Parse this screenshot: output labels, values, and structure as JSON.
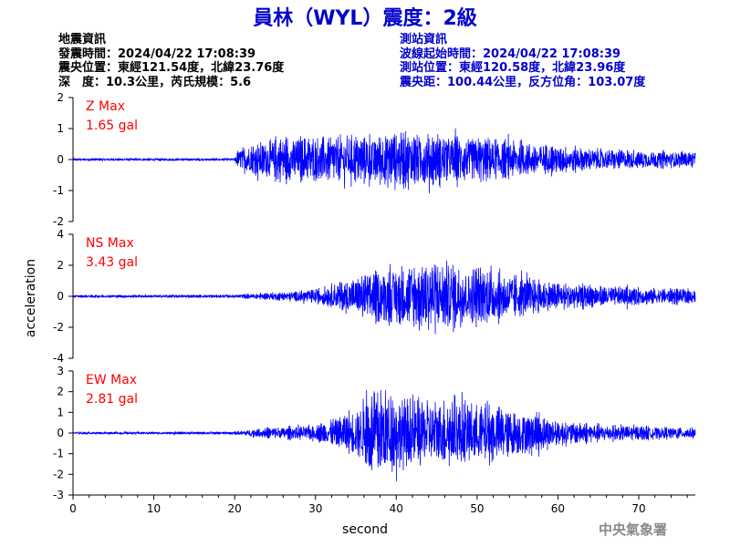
{
  "header": {
    "title": "員林（WYL）震度：2級"
  },
  "quake_info": {
    "heading": "地震資訊",
    "time": "發震時間：2024/04/22 17:08:39",
    "epicenter": "震央位置：東經121.54度，北緯23.76度",
    "depth_mag": "深　度：10.3公里，芮氏規模：5.6"
  },
  "station_info": {
    "heading": "測站資訊",
    "onset": "波線起始時間：2024/04/22 17:08:39",
    "location": "測站位置：東經120.58度，北緯23.96度",
    "distance": "震央距：100.44公里，反方位角：103.07度"
  },
  "agency": "中央氣象署",
  "colors": {
    "trace": "#0000ff",
    "max_label": "#ff0000",
    "title": "#0000cc"
  },
  "chart_data": [
    {
      "type": "line",
      "component": "Z",
      "max_label": "Z Max",
      "max_value": "1.65 gal",
      "ylim": [
        -2,
        2
      ],
      "yticks": [
        -2,
        -1,
        0,
        1,
        2
      ],
      "xlim": [
        0,
        77
      ],
      "onset_s": 20,
      "peak_s": 40,
      "envelope": {
        "t": [
          0,
          20,
          20.5,
          25,
          35,
          40,
          45,
          50,
          55,
          60,
          65,
          70,
          77
        ],
        "amp": [
          0.05,
          0.05,
          0.4,
          0.8,
          0.85,
          1.0,
          0.95,
          0.8,
          0.65,
          0.5,
          0.4,
          0.33,
          0.28
        ]
      }
    },
    {
      "type": "line",
      "component": "NS",
      "max_label": "NS Max",
      "max_value": "3.43 gal",
      "ylabel": "acceleration",
      "ylim": [
        -4,
        4
      ],
      "yticks": [
        -4,
        -2,
        0,
        2,
        4
      ],
      "xlim": [
        0,
        77
      ],
      "onset_s": 20,
      "peak_s": 44,
      "envelope": {
        "t": [
          0,
          20,
          25,
          30,
          34,
          38,
          42,
          44,
          48,
          52,
          56,
          60,
          66,
          72,
          77
        ],
        "amp": [
          0.1,
          0.12,
          0.3,
          0.5,
          1.2,
          1.9,
          2.3,
          2.8,
          2.3,
          1.9,
          1.4,
          1.0,
          0.75,
          0.6,
          0.5
        ]
      }
    },
    {
      "type": "line",
      "component": "EW",
      "max_label": "EW Max",
      "max_value": "2.81 gal",
      "ylim": [
        -3,
        3
      ],
      "yticks": [
        -3,
        -2,
        -1,
        0,
        1,
        2,
        3
      ],
      "xlim": [
        0,
        77
      ],
      "xticks": [
        0,
        10,
        20,
        30,
        40,
        50,
        60,
        70
      ],
      "xlabel": "second",
      "onset_s": 20,
      "peak_s": 37,
      "envelope": {
        "t": [
          0,
          20,
          24,
          30,
          35,
          37,
          42,
          48,
          52,
          56,
          60,
          66,
          72,
          77
        ],
        "amp": [
          0.06,
          0.08,
          0.3,
          0.4,
          1.3,
          2.4,
          1.9,
          1.7,
          1.5,
          1.2,
          0.7,
          0.45,
          0.35,
          0.3
        ]
      }
    }
  ]
}
